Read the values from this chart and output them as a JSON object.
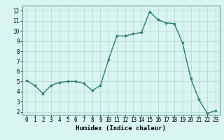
{
  "x": [
    0,
    1,
    2,
    3,
    4,
    5,
    6,
    7,
    8,
    9,
    10,
    11,
    12,
    13,
    14,
    15,
    16,
    17,
    18,
    19,
    20,
    21,
    22,
    23
  ],
  "y": [
    5.1,
    4.6,
    3.8,
    4.6,
    4.9,
    5.0,
    5.0,
    4.8,
    4.1,
    4.6,
    7.2,
    9.5,
    9.5,
    9.7,
    9.85,
    11.9,
    11.1,
    10.8,
    10.7,
    8.8,
    5.3,
    3.2,
    1.85,
    2.1
  ],
  "line_color": "#2e7d6e",
  "marker": "D",
  "marker_size": 1.8,
  "bg_color": "#d8f5f0",
  "grid_color": "#c0dcd8",
  "xlabel": "Humidex (Indice chaleur)",
  "ylim": [
    1.7,
    12.5
  ],
  "xlim": [
    -0.5,
    23.5
  ],
  "yticks": [
    2,
    3,
    4,
    5,
    6,
    7,
    8,
    9,
    10,
    11,
    12
  ],
  "xticks": [
    0,
    1,
    2,
    3,
    4,
    5,
    6,
    7,
    8,
    9,
    10,
    11,
    12,
    13,
    14,
    15,
    16,
    17,
    18,
    19,
    20,
    21,
    22,
    23
  ],
  "tick_fontsize": 5.5,
  "xlabel_fontsize": 6.5,
  "linewidth": 1.0
}
